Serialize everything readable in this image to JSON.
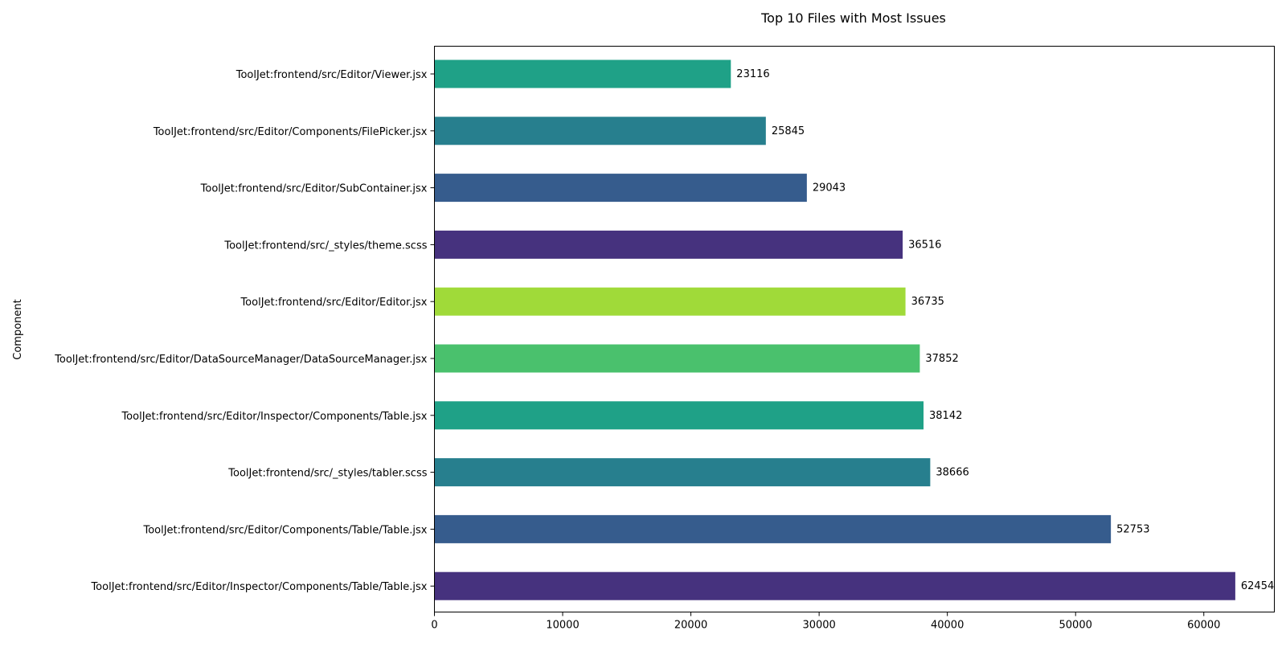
{
  "chart_data": {
    "type": "bar",
    "orientation": "horizontal",
    "title": "Top 10 Files with Most Issues",
    "xlabel": "",
    "ylabel": "Component",
    "xlim": [
      0,
      65500
    ],
    "xticks": [
      0,
      10000,
      20000,
      30000,
      40000,
      50000,
      60000
    ],
    "grid": false,
    "legend": "none",
    "categories": [
      "ToolJet:frontend/src/Editor/Viewer.jsx",
      "ToolJet:frontend/src/Editor/Components/FilePicker.jsx",
      "ToolJet:frontend/src/Editor/SubContainer.jsx",
      "ToolJet:frontend/src/_styles/theme.scss",
      "ToolJet:frontend/src/Editor/Editor.jsx",
      "ToolJet:frontend/src/Editor/DataSourceManager/DataSourceManager.jsx",
      "ToolJet:frontend/src/Editor/Inspector/Components/Table.jsx",
      "ToolJet:frontend/src/_styles/tabler.scss",
      "ToolJet:frontend/src/Editor/Components/Table/Table.jsx",
      "ToolJet:frontend/src/Editor/Inspector/Components/Table/Table.jsx"
    ],
    "values": [
      23116,
      25845,
      29043,
      36516,
      36735,
      37852,
      38142,
      38666,
      52753,
      62454
    ],
    "data_labels": [
      "23116",
      "25845",
      "29043",
      "36516",
      "36735",
      "37852",
      "38142",
      "38666",
      "52753",
      "62454"
    ],
    "colors": [
      "#1fa187",
      "#277f8e",
      "#365c8d",
      "#46327e",
      "#a0da39",
      "#4ac16d",
      "#1fa187",
      "#277f8e",
      "#365c8d",
      "#46327e"
    ]
  }
}
